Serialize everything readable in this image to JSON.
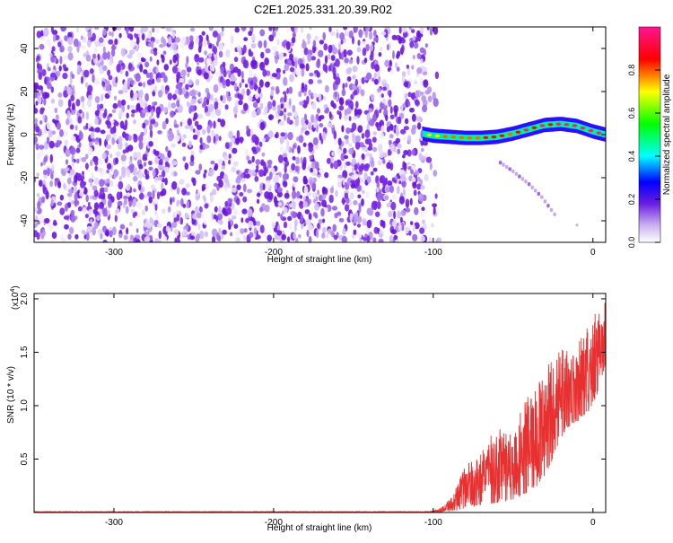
{
  "title": "C2E1.2025.331.20.39.R02",
  "chart_data": [
    {
      "type": "heatmap",
      "name": "spectrogram",
      "xlabel": "Height of straight line (km)",
      "ylabel": "Frequency (Hz)",
      "xlim": [
        -350,
        8
      ],
      "ylim": [
        -50,
        50
      ],
      "xticks": [
        -300,
        -200,
        -100,
        0
      ],
      "yticks": [
        -40,
        -20,
        0,
        20,
        40
      ],
      "noise_region_x": [
        -350,
        -105
      ],
      "signal_track": {
        "x": [
          -107,
          -100,
          -90,
          -80,
          -70,
          -60,
          -50,
          -40,
          -30,
          -20,
          -10,
          0,
          8
        ],
        "freq": [
          0.5,
          -0.5,
          -1.0,
          -1.5,
          -1.5,
          -1.0,
          0.5,
          2.5,
          4.5,
          5.0,
          4.0,
          1.5,
          0.0
        ]
      },
      "secondary_branch": {
        "x": [
          -58,
          -50,
          -40,
          -32,
          -24
        ],
        "freq": [
          -13,
          -17,
          -23,
          -29,
          -37
        ]
      },
      "colorbar": {
        "label": "Normalized spectral amplitude",
        "range": [
          0.0,
          1.0
        ],
        "ticks": [
          0.0,
          0.2,
          0.4,
          0.6,
          0.8
        ],
        "colors": [
          "#ffffff",
          "#d9c2f5",
          "#7b1fe6",
          "#0000ff",
          "#00ffff",
          "#00ff00",
          "#ffff00",
          "#ff0000",
          "#ff00aa"
        ]
      }
    },
    {
      "type": "line",
      "name": "snr",
      "xlabel": "Height of straight line (km)",
      "ylabel": "SNR (10 * v/v)",
      "scale_label": "(x10",
      "scale_exp": "4",
      "scale_close": ")",
      "xlim": [
        -350,
        8
      ],
      "ylim": [
        0,
        2.05
      ],
      "xticks": [
        -300,
        -200,
        -100,
        0
      ],
      "yticks": [
        0.5,
        1.0,
        1.5,
        2.0
      ],
      "ytick_labels": [
        "0.5",
        "1.0",
        "1.5",
        "2.0"
      ],
      "color": "#e83030",
      "envelope": {
        "x": [
          -350,
          -200,
          -105,
          -100,
          -95,
          -90,
          -85,
          -80,
          -75,
          -70,
          -65,
          -60,
          -55,
          -50,
          -45,
          -40,
          -35,
          -30,
          -25,
          -20,
          -15,
          -10,
          -5,
          0,
          5,
          8
        ],
        "low": [
          0.0,
          0.0,
          0.0,
          0.0,
          0.0,
          0.01,
          0.02,
          0.04,
          0.06,
          0.07,
          0.08,
          0.09,
          0.1,
          0.12,
          0.15,
          0.2,
          0.25,
          0.35,
          0.5,
          0.7,
          0.8,
          0.85,
          0.9,
          1.0,
          1.2,
          1.4
        ],
        "high": [
          0.01,
          0.01,
          0.01,
          0.02,
          0.05,
          0.12,
          0.25,
          0.45,
          0.5,
          0.55,
          0.7,
          0.8,
          0.75,
          0.85,
          1.0,
          1.1,
          1.2,
          1.35,
          1.45,
          1.55,
          1.5,
          1.6,
          1.7,
          1.85,
          1.9,
          2.05
        ]
      }
    }
  ]
}
